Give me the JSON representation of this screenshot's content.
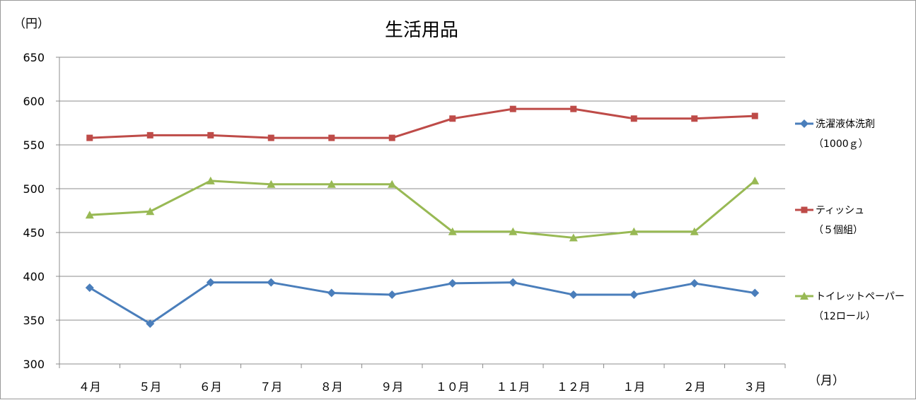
{
  "chart_data": {
    "type": "line",
    "title": "生活用品",
    "ylabel": "（円）",
    "xlabel": "（月）",
    "ylim": [
      300,
      650
    ],
    "yticks": [
      300,
      350,
      400,
      450,
      500,
      550,
      600,
      650
    ],
    "ytick_labels": [
      "300",
      "350",
      "400",
      "450",
      "500",
      "550",
      "600",
      "650"
    ],
    "categories": [
      "４月",
      "５月",
      "６月",
      "７月",
      "８月",
      "９月",
      "１０月",
      "１１月",
      "１２月",
      "１月",
      "２月",
      "３月"
    ],
    "grid": true,
    "legend_position": "right",
    "series": [
      {
        "name": "洗濯液体洗剤",
        "name_sub": "（1000ｇ）",
        "color": "#4a7ebb",
        "marker": "diamond",
        "values": [
          387,
          346,
          393,
          393,
          381,
          379,
          392,
          393,
          379,
          379,
          392,
          381
        ]
      },
      {
        "name": "ティッシュ",
        "name_sub": "（５個組）",
        "color": "#be4b48",
        "marker": "square",
        "values": [
          558,
          561,
          561,
          558,
          558,
          558,
          580,
          591,
          591,
          580,
          580,
          583
        ]
      },
      {
        "name": "トイレットペーパー",
        "name_sub": "（12ロール）",
        "color": "#98b954",
        "marker": "triangle",
        "values": [
          470,
          474,
          509,
          505,
          505,
          505,
          451,
          451,
          444,
          451,
          451,
          509
        ]
      }
    ]
  }
}
